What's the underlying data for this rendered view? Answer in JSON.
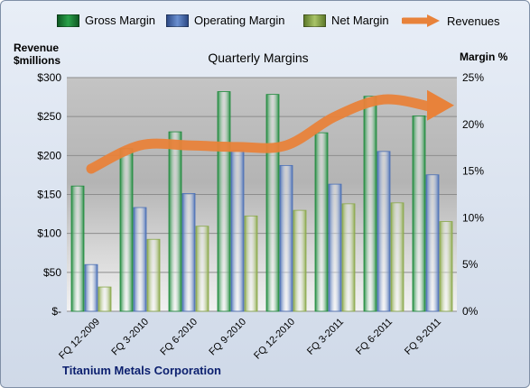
{
  "chart_data": {
    "type": "bar",
    "title": "Quarterly Margins",
    "categories": [
      "FQ 12-2009",
      "FQ 3-2010",
      "FQ 6-2010",
      "FQ 9-2010",
      "FQ 12-2010",
      "FQ 3-2011",
      "FQ 6-2011",
      "FQ 9-2011"
    ],
    "series": [
      {
        "name": "Gross Margin",
        "type": "bar",
        "axis": "right",
        "color": "#1e8a3c",
        "values": [
          13.4,
          17.4,
          19.2,
          23.5,
          23.2,
          19.1,
          23.0,
          20.9
        ]
      },
      {
        "name": "Operating Margin",
        "type": "bar",
        "axis": "right",
        "color": "#4a6fb5",
        "values": [
          5.0,
          11.1,
          12.6,
          17.2,
          15.6,
          13.6,
          17.1,
          14.6
        ]
      },
      {
        "name": "Net Margin",
        "type": "bar",
        "axis": "right",
        "color": "#8aa84a",
        "values": [
          2.6,
          7.7,
          9.1,
          10.2,
          10.8,
          11.5,
          11.6,
          9.6
        ]
      },
      {
        "name": "Revenues",
        "type": "line",
        "axis": "left",
        "color": "#e8823a",
        "values": [
          183,
          213,
          213,
          211,
          213,
          250,
          272,
          262
        ]
      }
    ],
    "left_axis": {
      "label": "Revenue $millions",
      "min": 0,
      "max": 300,
      "step": 50,
      "ticks": [
        "$-",
        "$50",
        "$100",
        "$150",
        "$200",
        "$250",
        "$300"
      ]
    },
    "right_axis": {
      "label": "Margin %",
      "min": 0,
      "max": 25,
      "step": 5,
      "ticks": [
        "0%",
        "5%",
        "10%",
        "15%",
        "20%",
        "25%"
      ]
    },
    "grid": true,
    "legend_position": "top"
  },
  "legend": [
    {
      "label": "Gross Margin",
      "color": "#1e8a3c",
      "kind": "box"
    },
    {
      "label": "Operating Margin",
      "color": "#4a6fb5",
      "kind": "box"
    },
    {
      "label": "Net Margin",
      "color": "#8aa84a",
      "kind": "box"
    },
    {
      "label": "Revenues",
      "color": "#e8823a",
      "kind": "arrow"
    }
  ],
  "left_axis_title": "Revenue\n$millions",
  "right_axis_title": "Margin %",
  "company": "Titanium Metals Corporation"
}
